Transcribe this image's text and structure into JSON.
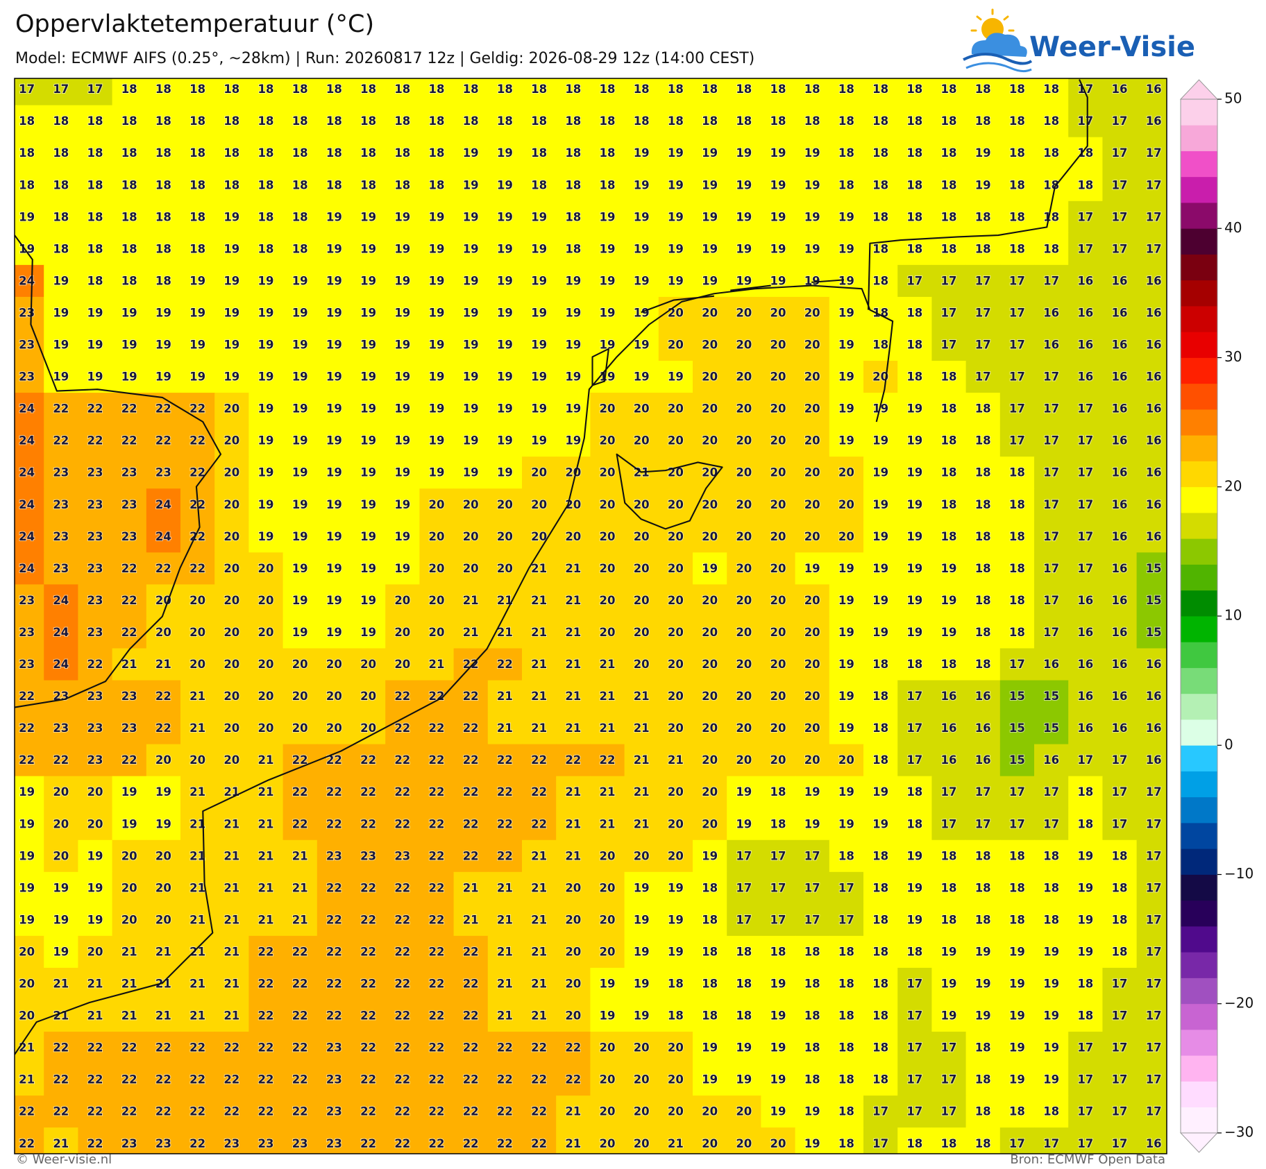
{
  "title": "Oppervlaktetemperatuur (°C)",
  "subtitle": "Model: ECMWF AIFS (0.25°, ~28km)  |  Run: 20260817 12z  |  Geldig: 2026-08-29 12z (14:00 CEST)",
  "logo": "Weer-Visie",
  "footer_left": "© Weer-visie.nl",
  "footer_right": "Bron: ECMWF Open Data",
  "grid": {
    "values": [
      [
        17,
        17,
        17,
        18,
        18,
        18,
        18,
        18,
        18,
        18,
        18,
        18,
        18,
        18,
        18,
        18,
        18,
        18,
        18,
        18,
        18,
        18,
        18,
        18,
        18,
        18,
        18,
        18,
        18,
        18,
        18,
        17,
        16,
        16
      ],
      [
        18,
        18,
        18,
        18,
        18,
        18,
        18,
        18,
        18,
        18,
        18,
        18,
        18,
        18,
        18,
        18,
        18,
        18,
        18,
        18,
        18,
        18,
        18,
        18,
        18,
        18,
        18,
        18,
        18,
        18,
        18,
        17,
        17,
        16
      ],
      [
        18,
        18,
        18,
        18,
        18,
        18,
        18,
        18,
        18,
        18,
        18,
        18,
        18,
        19,
        19,
        18,
        18,
        18,
        19,
        19,
        19,
        19,
        19,
        19,
        18,
        18,
        18,
        18,
        19,
        18,
        18,
        18,
        17,
        17
      ],
      [
        18,
        18,
        18,
        18,
        18,
        18,
        18,
        18,
        18,
        18,
        18,
        18,
        18,
        19,
        19,
        18,
        18,
        18,
        19,
        19,
        19,
        19,
        19,
        19,
        18,
        18,
        18,
        18,
        19,
        18,
        18,
        18,
        17,
        17
      ],
      [
        19,
        18,
        18,
        18,
        18,
        18,
        19,
        18,
        18,
        19,
        19,
        19,
        19,
        19,
        19,
        19,
        18,
        19,
        19,
        19,
        19,
        19,
        19,
        19,
        19,
        18,
        18,
        18,
        18,
        18,
        18,
        17,
        17,
        17
      ],
      [
        19,
        18,
        18,
        18,
        18,
        18,
        19,
        18,
        18,
        19,
        19,
        19,
        19,
        19,
        19,
        19,
        18,
        19,
        19,
        19,
        19,
        19,
        19,
        19,
        19,
        18,
        18,
        18,
        18,
        18,
        18,
        17,
        17,
        17
      ],
      [
        24,
        19,
        18,
        18,
        18,
        19,
        19,
        19,
        19,
        19,
        19,
        19,
        19,
        19,
        19,
        19,
        19,
        19,
        19,
        19,
        19,
        19,
        19,
        19,
        19,
        18,
        17,
        17,
        17,
        17,
        17,
        16,
        16,
        16
      ],
      [
        23,
        19,
        19,
        19,
        19,
        19,
        19,
        19,
        19,
        19,
        19,
        19,
        19,
        19,
        19,
        19,
        19,
        19,
        19,
        20,
        20,
        20,
        20,
        20,
        19,
        18,
        18,
        17,
        17,
        17,
        16,
        16,
        16,
        16
      ],
      [
        23,
        19,
        19,
        19,
        19,
        19,
        19,
        19,
        19,
        19,
        19,
        19,
        19,
        19,
        19,
        19,
        19,
        19,
        19,
        20,
        20,
        20,
        20,
        20,
        19,
        18,
        18,
        17,
        17,
        17,
        16,
        16,
        16,
        16
      ],
      [
        23,
        19,
        19,
        19,
        19,
        19,
        19,
        19,
        19,
        19,
        19,
        19,
        19,
        19,
        19,
        19,
        19,
        19,
        19,
        19,
        20,
        20,
        20,
        20,
        19,
        20,
        18,
        18,
        17,
        17,
        17,
        16,
        16,
        16
      ],
      [
        24,
        22,
        22,
        22,
        22,
        22,
        20,
        19,
        19,
        19,
        19,
        19,
        19,
        19,
        19,
        19,
        19,
        20,
        20,
        20,
        20,
        20,
        20,
        20,
        19,
        19,
        19,
        18,
        18,
        17,
        17,
        17,
        16,
        16
      ],
      [
        24,
        22,
        22,
        22,
        22,
        22,
        20,
        19,
        19,
        19,
        19,
        19,
        19,
        19,
        19,
        19,
        19,
        20,
        20,
        20,
        20,
        20,
        20,
        20,
        19,
        19,
        19,
        18,
        18,
        17,
        17,
        17,
        16,
        16
      ],
      [
        24,
        23,
        23,
        23,
        23,
        22,
        20,
        19,
        19,
        19,
        19,
        19,
        19,
        19,
        19,
        20,
        20,
        20,
        21,
        20,
        20,
        20,
        20,
        20,
        20,
        19,
        19,
        18,
        18,
        18,
        17,
        17,
        16,
        16
      ],
      [
        24,
        23,
        23,
        23,
        24,
        22,
        20,
        19,
        19,
        19,
        19,
        19,
        20,
        20,
        20,
        20,
        20,
        20,
        20,
        20,
        20,
        20,
        20,
        20,
        20,
        19,
        19,
        18,
        18,
        18,
        17,
        17,
        16,
        16
      ],
      [
        24,
        23,
        23,
        23,
        24,
        22,
        20,
        19,
        19,
        19,
        19,
        19,
        20,
        20,
        20,
        20,
        20,
        20,
        20,
        20,
        20,
        20,
        20,
        20,
        20,
        19,
        19,
        18,
        18,
        18,
        17,
        17,
        16,
        16
      ],
      [
        24,
        23,
        23,
        22,
        22,
        22,
        20,
        20,
        19,
        19,
        19,
        19,
        20,
        20,
        20,
        21,
        21,
        20,
        20,
        20,
        19,
        20,
        20,
        19,
        19,
        19,
        19,
        19,
        18,
        18,
        17,
        17,
        16,
        15
      ],
      [
        23,
        24,
        23,
        22,
        20,
        20,
        20,
        20,
        19,
        19,
        19,
        20,
        20,
        21,
        21,
        21,
        21,
        20,
        20,
        20,
        20,
        20,
        20,
        20,
        19,
        19,
        19,
        19,
        18,
        18,
        17,
        16,
        16,
        15
      ],
      [
        23,
        24,
        23,
        22,
        20,
        20,
        20,
        20,
        19,
        19,
        19,
        20,
        20,
        21,
        21,
        21,
        21,
        20,
        20,
        20,
        20,
        20,
        20,
        20,
        19,
        19,
        19,
        19,
        18,
        18,
        17,
        16,
        16,
        15
      ],
      [
        23,
        24,
        22,
        21,
        21,
        20,
        20,
        20,
        20,
        20,
        20,
        20,
        21,
        22,
        22,
        21,
        21,
        21,
        20,
        20,
        20,
        20,
        20,
        20,
        19,
        18,
        18,
        18,
        18,
        17,
        16,
        16,
        16,
        16
      ],
      [
        22,
        23,
        23,
        23,
        22,
        21,
        20,
        20,
        20,
        20,
        20,
        22,
        22,
        22,
        21,
        21,
        21,
        21,
        21,
        20,
        20,
        20,
        20,
        20,
        19,
        18,
        17,
        16,
        16,
        15,
        15,
        16,
        16,
        16
      ],
      [
        22,
        23,
        23,
        23,
        22,
        21,
        20,
        20,
        20,
        20,
        20,
        22,
        22,
        22,
        21,
        21,
        21,
        21,
        21,
        20,
        20,
        20,
        20,
        20,
        19,
        18,
        17,
        16,
        16,
        15,
        15,
        16,
        16,
        16
      ],
      [
        22,
        22,
        23,
        22,
        20,
        20,
        20,
        21,
        22,
        22,
        22,
        22,
        22,
        22,
        22,
        22,
        22,
        22,
        21,
        21,
        20,
        20,
        20,
        20,
        20,
        18,
        17,
        16,
        16,
        15,
        16,
        17,
        17,
        16
      ],
      [
        19,
        20,
        20,
        19,
        19,
        21,
        21,
        21,
        22,
        22,
        22,
        22,
        22,
        22,
        22,
        22,
        21,
        21,
        21,
        20,
        20,
        19,
        18,
        19,
        19,
        19,
        18,
        17,
        17,
        17,
        17,
        18,
        17,
        17
      ],
      [
        19,
        20,
        20,
        19,
        19,
        21,
        21,
        21,
        22,
        22,
        22,
        22,
        22,
        22,
        22,
        22,
        21,
        21,
        21,
        20,
        20,
        19,
        18,
        19,
        19,
        19,
        18,
        17,
        17,
        17,
        17,
        18,
        17,
        17
      ],
      [
        19,
        20,
        19,
        20,
        20,
        21,
        21,
        21,
        21,
        23,
        23,
        23,
        22,
        22,
        22,
        21,
        21,
        20,
        20,
        20,
        19,
        17,
        17,
        17,
        18,
        18,
        19,
        18,
        18,
        18,
        18,
        19,
        18,
        17
      ],
      [
        19,
        19,
        19,
        20,
        20,
        21,
        21,
        21,
        21,
        22,
        22,
        22,
        22,
        21,
        21,
        21,
        20,
        20,
        19,
        19,
        18,
        17,
        17,
        17,
        17,
        18,
        19,
        18,
        18,
        18,
        18,
        19,
        18,
        17
      ],
      [
        19,
        19,
        19,
        20,
        20,
        21,
        21,
        21,
        21,
        22,
        22,
        22,
        22,
        21,
        21,
        21,
        20,
        20,
        19,
        19,
        18,
        17,
        17,
        17,
        17,
        18,
        19,
        18,
        18,
        18,
        18,
        19,
        18,
        17
      ],
      [
        20,
        19,
        20,
        21,
        21,
        21,
        21,
        22,
        22,
        22,
        22,
        22,
        22,
        22,
        21,
        21,
        20,
        20,
        19,
        19,
        18,
        18,
        18,
        18,
        18,
        18,
        18,
        19,
        19,
        19,
        19,
        19,
        18,
        17
      ],
      [
        20,
        21,
        21,
        21,
        21,
        21,
        21,
        22,
        22,
        22,
        22,
        22,
        22,
        22,
        21,
        21,
        20,
        19,
        19,
        18,
        18,
        18,
        19,
        18,
        18,
        18,
        17,
        19,
        19,
        19,
        19,
        18,
        17,
        17
      ],
      [
        20,
        21,
        21,
        21,
        21,
        21,
        21,
        22,
        22,
        22,
        22,
        22,
        22,
        22,
        21,
        21,
        20,
        19,
        19,
        18,
        18,
        18,
        19,
        18,
        18,
        18,
        17,
        19,
        19,
        19,
        19,
        18,
        17,
        17
      ],
      [
        21,
        22,
        22,
        22,
        22,
        22,
        22,
        22,
        22,
        23,
        22,
        22,
        22,
        22,
        22,
        22,
        22,
        20,
        20,
        20,
        19,
        19,
        19,
        18,
        18,
        18,
        17,
        17,
        18,
        19,
        19,
        17,
        17,
        17
      ],
      [
        21,
        22,
        22,
        22,
        22,
        22,
        22,
        22,
        22,
        23,
        22,
        22,
        22,
        22,
        22,
        22,
        22,
        20,
        20,
        20,
        19,
        19,
        19,
        18,
        18,
        18,
        17,
        17,
        18,
        19,
        19,
        17,
        17,
        17
      ],
      [
        22,
        22,
        22,
        22,
        22,
        22,
        22,
        22,
        22,
        23,
        22,
        22,
        22,
        22,
        22,
        22,
        21,
        20,
        20,
        20,
        20,
        20,
        19,
        19,
        18,
        17,
        17,
        17,
        18,
        18,
        18,
        17,
        17,
        17
      ],
      [
        22,
        21,
        22,
        23,
        23,
        22,
        23,
        23,
        23,
        23,
        22,
        22,
        22,
        22,
        22,
        22,
        21,
        20,
        20,
        21,
        20,
        20,
        20,
        19,
        18,
        17,
        18,
        18,
        18,
        17,
        17,
        17,
        17,
        16
      ]
    ]
  },
  "colorbar": {
    "lim": [
      -30,
      50
    ],
    "colors": [
      "#fff0ff",
      "#ffdcff",
      "#ffb4f0",
      "#e68ce6",
      "#c864d2",
      "#a050c0",
      "#7828a8",
      "#500a8c",
      "#28005a",
      "#140a46",
      "#00287a",
      "#0046a0",
      "#0078c8",
      "#00a0e6",
      "#28c8ff",
      "#dcffe6",
      "#b4f0b4",
      "#78dc78",
      "#40c840",
      "#00b400",
      "#008c00",
      "#50b400",
      "#8cc800",
      "#d4dc00",
      "#ffff00",
      "#ffd800",
      "#ffb000",
      "#ff8000",
      "#ff5000",
      "#ff2000",
      "#e80000",
      "#cc0000",
      "#a50000",
      "#7a0010",
      "#4d0030",
      "#8b0a6a",
      "#c91eac",
      "#f050c8",
      "#f7a8d9",
      "#fcd0ea"
    ],
    "ticks": [
      {
        "value": -30,
        "label": "−30"
      },
      {
        "value": -20,
        "label": "−20"
      },
      {
        "value": -10,
        "label": "−10"
      },
      0,
      10,
      20,
      30,
      40,
      50
    ]
  }
}
